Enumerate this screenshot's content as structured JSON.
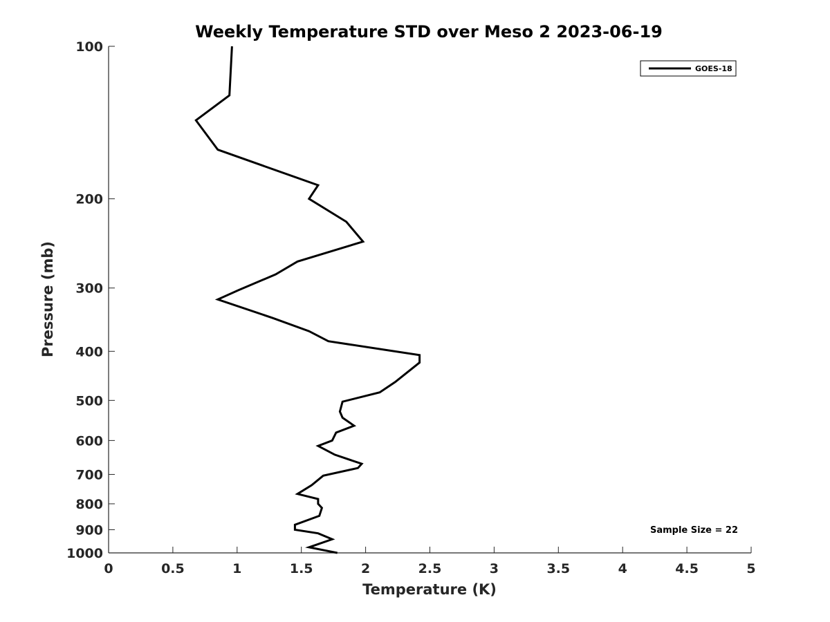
{
  "chart_data": {
    "type": "line",
    "title": "Weekly Temperature STD over Meso 2 2023-06-19",
    "xlabel": "Temperature (K)",
    "ylabel": "Pressure (mb)",
    "xlim": [
      0,
      5
    ],
    "ylim": [
      100,
      1000
    ],
    "y_scale": "log",
    "y_reversed": true,
    "x_ticks": [
      0,
      0.5,
      1,
      1.5,
      2,
      2.5,
      3,
      3.5,
      4,
      4.5,
      5
    ],
    "x_tick_labels": [
      "0",
      "0.5",
      "1",
      "1.5",
      "2",
      "2.5",
      "3",
      "3.5",
      "4",
      "4.5",
      "5"
    ],
    "y_ticks": [
      100,
      200,
      300,
      400,
      500,
      600,
      700,
      800,
      900,
      1000
    ],
    "y_tick_labels": [
      "100",
      "200",
      "300",
      "400",
      "500",
      "600",
      "700",
      "800",
      "900",
      "1000"
    ],
    "grid": false,
    "legend_position": "top-right",
    "annotation": "Sample Size = 22",
    "line_color": "#000000",
    "series": [
      {
        "name": "GOES-18",
        "points": [
          [
            0.96,
            100
          ],
          [
            0.94,
            125
          ],
          [
            0.68,
            140
          ],
          [
            0.85,
            160
          ],
          [
            1.63,
            188
          ],
          [
            1.56,
            200
          ],
          [
            1.85,
            222
          ],
          [
            1.98,
            243
          ],
          [
            1.47,
            266
          ],
          [
            1.3,
            282
          ],
          [
            1.01,
            303
          ],
          [
            0.85,
            316
          ],
          [
            1.28,
            344
          ],
          [
            1.56,
            365
          ],
          [
            1.71,
            382
          ],
          [
            2.42,
            407
          ],
          [
            2.42,
            421
          ],
          [
            2.23,
            460
          ],
          [
            2.11,
            482
          ],
          [
            1.82,
            503
          ],
          [
            1.8,
            526
          ],
          [
            1.82,
            541
          ],
          [
            1.91,
            561
          ],
          [
            1.77,
            579
          ],
          [
            1.74,
            600
          ],
          [
            1.63,
            615
          ],
          [
            1.76,
            640
          ],
          [
            1.97,
            667
          ],
          [
            1.94,
            680
          ],
          [
            1.67,
            704
          ],
          [
            1.58,
            735
          ],
          [
            1.47,
            765
          ],
          [
            1.63,
            783
          ],
          [
            1.63,
            800
          ],
          [
            1.66,
            815
          ],
          [
            1.64,
            845
          ],
          [
            1.45,
            880
          ],
          [
            1.45,
            900
          ],
          [
            1.63,
            915
          ],
          [
            1.74,
            940
          ],
          [
            1.56,
            975
          ],
          [
            1.78,
            1000
          ]
        ]
      }
    ]
  }
}
